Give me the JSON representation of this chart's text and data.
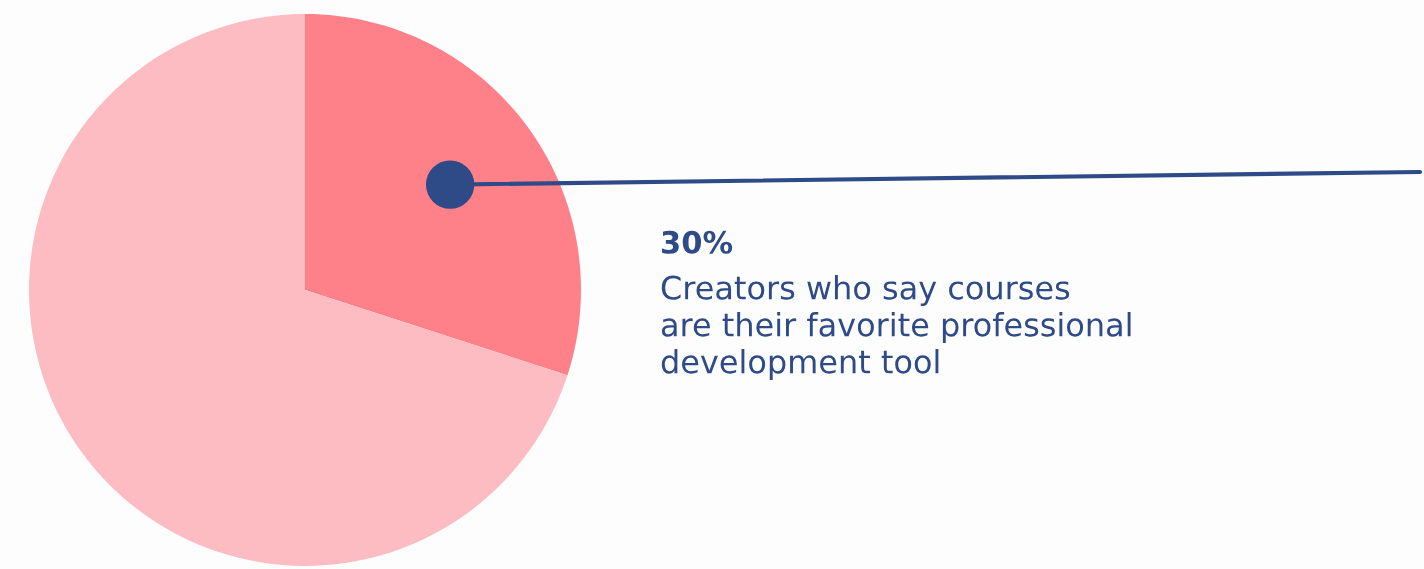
{
  "chart_data": {
    "type": "pie",
    "categories": [
      "Creators who say courses\nare their favorite professional\ndevelopment tool",
      null
    ],
    "values": [
      30,
      70
    ],
    "colors": [
      "#fe8088",
      "#fdbcc1"
    ],
    "value_labels": [
      "30%",
      null
    ],
    "legend": false
  }
}
